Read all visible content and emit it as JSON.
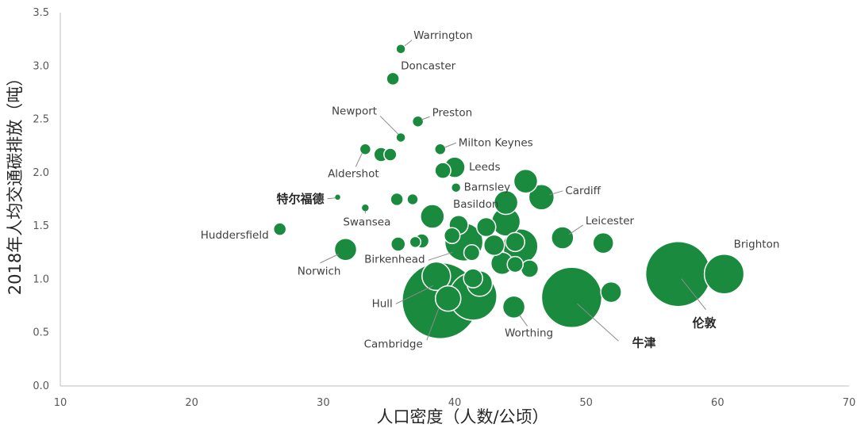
{
  "chart_data": {
    "type": "scatter",
    "xlabel": "人口密度（人数/公顷）",
    "ylabel": "2018年人均交通碳排放（吨）",
    "xlim": [
      10,
      70
    ],
    "ylim": [
      0,
      3.5
    ],
    "xticks": [
      10,
      20,
      30,
      40,
      50,
      60,
      70
    ],
    "yticks": [
      0.0,
      0.5,
      1.0,
      1.5,
      2.0,
      2.5,
      3.0,
      3.5
    ],
    "grid": false,
    "bubble_color": "#198a3e",
    "points": [
      {
        "x": 35.9,
        "y": 3.16,
        "size": 6,
        "label": "Warrington"
      },
      {
        "x": 35.3,
        "y": 2.88,
        "size": 8,
        "label": "Doncaster"
      },
      {
        "x": 37.2,
        "y": 2.48,
        "size": 7,
        "label": "Preston"
      },
      {
        "x": 35.9,
        "y": 2.33,
        "size": 6,
        "label": "Newport"
      },
      {
        "x": 33.2,
        "y": 2.22,
        "size": 7,
        "label": "Aldershot"
      },
      {
        "x": 34.4,
        "y": 2.17,
        "size": 9
      },
      {
        "x": 35.1,
        "y": 2.17,
        "size": 8
      },
      {
        "x": 38.9,
        "y": 2.22,
        "size": 7,
        "label": "Milton Keynes"
      },
      {
        "x": 40.0,
        "y": 2.05,
        "size": 13,
        "label": "Leeds"
      },
      {
        "x": 39.1,
        "y": 2.02,
        "size": 10
      },
      {
        "x": 40.1,
        "y": 1.86,
        "size": 6,
        "label": "Barnsley"
      },
      {
        "x": 45.4,
        "y": 1.92,
        "size": 15
      },
      {
        "x": 46.6,
        "y": 1.77,
        "size": 16,
        "label": "Cardiff"
      },
      {
        "x": 31.1,
        "y": 1.77,
        "size": 4,
        "label": "特尔福德"
      },
      {
        "x": 35.6,
        "y": 1.75,
        "size": 8
      },
      {
        "x": 36.8,
        "y": 1.75,
        "size": 7
      },
      {
        "x": 33.2,
        "y": 1.67,
        "size": 5,
        "label": "Swansea"
      },
      {
        "x": 38.3,
        "y": 1.59,
        "size": 15
      },
      {
        "x": 40.3,
        "y": 1.51,
        "size": 12,
        "label": "Basildon"
      },
      {
        "x": 43.9,
        "y": 1.72,
        "size": 15
      },
      {
        "x": 43.9,
        "y": 1.54,
        "size": 18
      },
      {
        "x": 42.4,
        "y": 1.49,
        "size": 12
      },
      {
        "x": 48.2,
        "y": 1.39,
        "size": 14,
        "label": "Leicester"
      },
      {
        "x": 51.3,
        "y": 1.34,
        "size": 13
      },
      {
        "x": 26.7,
        "y": 1.47,
        "size": 8,
        "label": "Huddersfield"
      },
      {
        "x": 31.7,
        "y": 1.28,
        "size": 14,
        "label": "Norwich"
      },
      {
        "x": 35.7,
        "y": 1.33,
        "size": 9
      },
      {
        "x": 37.0,
        "y": 1.35,
        "size": 7
      },
      {
        "x": 37.5,
        "y": 1.36,
        "size": 9
      },
      {
        "x": 39.8,
        "y": 1.41,
        "size": 10
      },
      {
        "x": 40.7,
        "y": 1.35,
        "size": 24,
        "label": "Birkenhead"
      },
      {
        "x": 41.3,
        "y": 1.25,
        "size": 10
      },
      {
        "x": 43.0,
        "y": 1.32,
        "size": 13
      },
      {
        "x": 44.6,
        "y": 1.35,
        "size": 12
      },
      {
        "x": 45.0,
        "y": 1.31,
        "size": 22
      },
      {
        "x": 43.6,
        "y": 1.15,
        "size": 14
      },
      {
        "x": 44.6,
        "y": 1.14,
        "size": 10
      },
      {
        "x": 45.7,
        "y": 1.1,
        "size": 11
      },
      {
        "x": 38.6,
        "y": 1.03,
        "size": 18,
        "label": "Hull"
      },
      {
        "x": 41.4,
        "y": 1.01,
        "size": 12
      },
      {
        "x": 41.9,
        "y": 0.96,
        "size": 16
      },
      {
        "x": 41.4,
        "y": 0.84,
        "size": 30
      },
      {
        "x": 38.9,
        "y": 0.8,
        "size": 48,
        "label": "Cambridge"
      },
      {
        "x": 39.5,
        "y": 0.82,
        "size": 16
      },
      {
        "x": 44.5,
        "y": 0.74,
        "size": 14,
        "label": "Worthing"
      },
      {
        "x": 48.9,
        "y": 0.83,
        "size": 38,
        "label": "牛津"
      },
      {
        "x": 51.9,
        "y": 0.88,
        "size": 13
      },
      {
        "x": 57.0,
        "y": 1.05,
        "size": 41,
        "label": "伦敦"
      },
      {
        "x": 60.5,
        "y": 1.05,
        "size": 25,
        "label": "Brighton"
      }
    ],
    "annotations": [
      {
        "text": "Warrington",
        "idx": 0
      },
      {
        "text": "Doncaster",
        "idx": 1
      },
      {
        "text": "Preston",
        "idx": 2
      },
      {
        "text": "Newport",
        "idx": 3
      },
      {
        "text": "Aldershot",
        "idx": 4
      },
      {
        "text": "Milton Keynes",
        "idx": 7
      },
      {
        "text": "Leeds",
        "idx": 8
      },
      {
        "text": "Barnsley",
        "idx": 10
      },
      {
        "text": "Cardiff",
        "idx": 12
      },
      {
        "text": "特尔福德",
        "idx": 13
      },
      {
        "text": "Swansea",
        "idx": 16
      },
      {
        "text": "Basildon",
        "idx": 18
      },
      {
        "text": "Leicester",
        "idx": 22
      },
      {
        "text": "Huddersfield",
        "idx": 24
      },
      {
        "text": "Norwich",
        "idx": 25
      },
      {
        "text": "Birkenhead",
        "idx": 30
      },
      {
        "text": "Hull",
        "idx": 38
      },
      {
        "text": "Cambridge",
        "idx": 42
      },
      {
        "text": "Worthing",
        "idx": 44
      },
      {
        "text": "牛津",
        "idx": 45
      },
      {
        "text": "伦敦",
        "idx": 47
      },
      {
        "text": "Brighton",
        "idx": 48
      }
    ]
  }
}
